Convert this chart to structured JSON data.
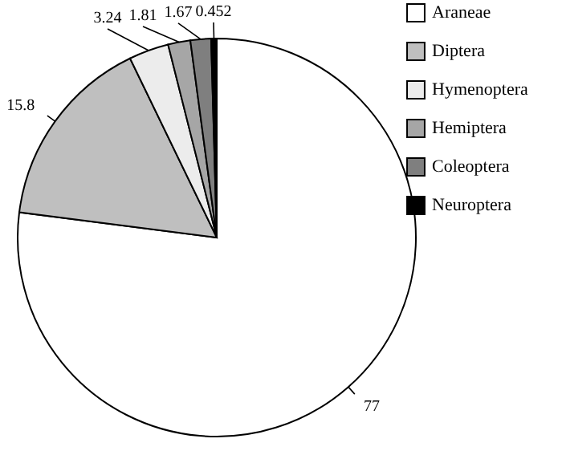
{
  "chart_data": {
    "type": "pie",
    "categories": [
      "Araneae",
      "Diptera",
      "Hymenoptera",
      "Hemiptera",
      "Coleoptera",
      "Neuroptera"
    ],
    "values": [
      77,
      15.8,
      3.24,
      1.81,
      1.67,
      0.452
    ],
    "colors": [
      "#ffffff",
      "#bfbfbf",
      "#ececec",
      "#a6a6a6",
      "#7f7f7f",
      "#000000"
    ],
    "data_labels": true,
    "legend": "right"
  }
}
